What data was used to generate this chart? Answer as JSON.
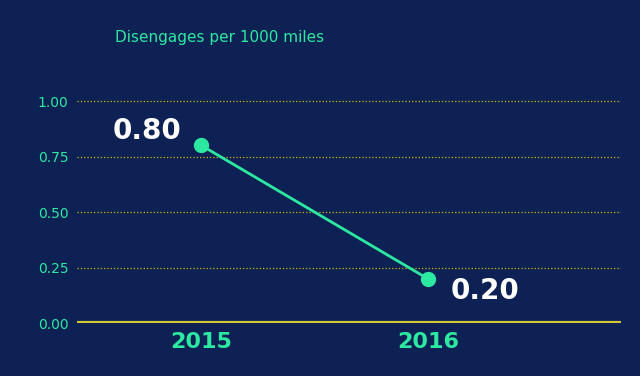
{
  "background_color": "#0d2155",
  "x_values": [
    2015,
    2016
  ],
  "y_values": [
    0.8,
    0.2
  ],
  "line_color": "#2de8a0",
  "marker_color": "#2de8a0",
  "ylabel_text": "Disengages per 1000 miles",
  "ylabel_color": "#2de8a0",
  "ylabel_fontsize": 11,
  "xlabel_labels": [
    "2015",
    "2016"
  ],
  "xlabel_color": "#2de8a0",
  "xlabel_fontsize": 16,
  "grid_color": "#d4b800",
  "ylim": [
    0.0,
    1.15
  ],
  "ytick_values": [
    0.0,
    0.25,
    0.5,
    0.75,
    1.0
  ],
  "ytick_color": "#2de8a0",
  "ytick_fontsize": 10,
  "baseline_color": "#d4c832",
  "baseline_linewidth": 3,
  "data_label_fontsize": 20,
  "data_label_color": "#ffffff",
  "marker_size": 10,
  "line_width": 2,
  "label_0_xoffset": -0.09,
  "label_0_yoffset": 0.065,
  "label_1_xoffset": 0.1,
  "label_1_yoffset": -0.055
}
